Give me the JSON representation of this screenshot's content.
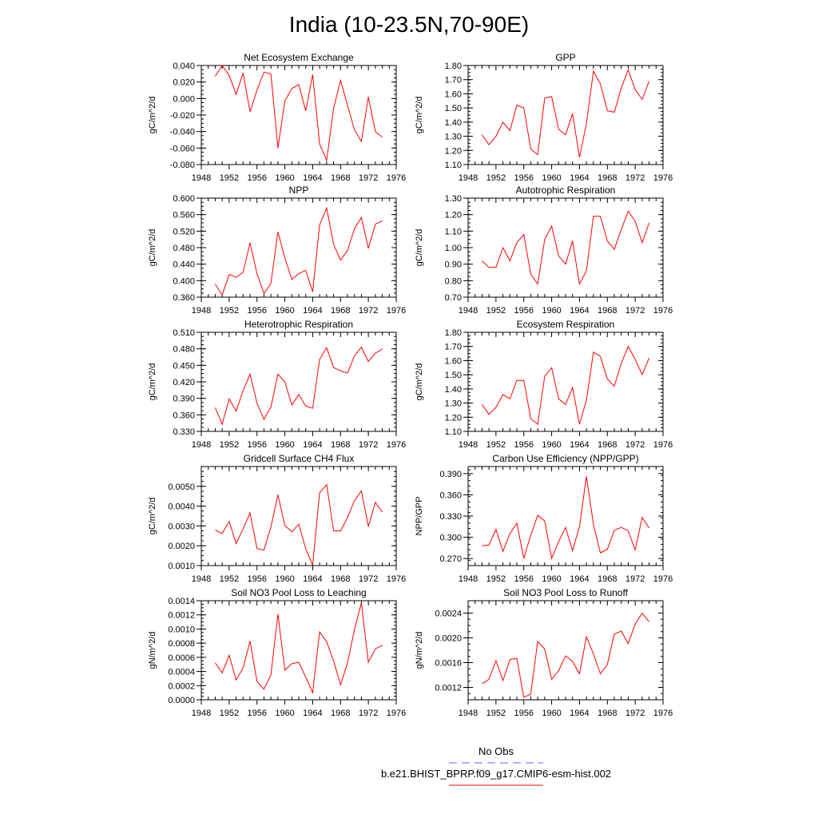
{
  "title": "India (10-23.5N,70-90E)",
  "colors": {
    "model_line": "#ff0000",
    "obs_line": "#6666ff",
    "axis": "#000000"
  },
  "legend": {
    "obs_label": "No Obs",
    "model_label": "b.e21.BHIST_BPRP.f09_g17.CMIP6-esm-hist.002"
  },
  "x": [
    1950,
    1951,
    1952,
    1953,
    1954,
    1955,
    1956,
    1957,
    1958,
    1959,
    1960,
    1961,
    1962,
    1963,
    1964,
    1965,
    1966,
    1967,
    1968,
    1969,
    1970,
    1971,
    1972,
    1973,
    1974
  ],
  "chart_data": [
    {
      "type": "line",
      "title": "Net Ecosystem Exchange",
      "ylabel": "gC/m^2/d",
      "xlim": [
        1948,
        1976
      ],
      "ylim": [
        -0.08,
        0.04
      ],
      "yticks": [
        "0.040",
        "0.020",
        "0.000",
        "-0.020",
        "-0.040",
        "-0.060",
        "-0.080"
      ],
      "ytick_values": [
        0.04,
        0.02,
        0.0,
        -0.02,
        -0.04,
        -0.06,
        -0.08
      ],
      "xticks": [
        "1948",
        "1952",
        "1956",
        "1960",
        "1964",
        "1968",
        "1972",
        "1976"
      ],
      "series": [
        {
          "values": [
            0.027,
            0.04,
            0.028,
            0.005,
            0.031,
            -0.016,
            0.01,
            0.032,
            0.03,
            -0.06,
            -0.003,
            0.012,
            0.017,
            -0.015,
            0.029,
            -0.055,
            -0.075,
            -0.012,
            0.022,
            -0.008,
            -0.038,
            -0.052,
            0.002,
            -0.04,
            -0.047
          ]
        }
      ]
    },
    {
      "type": "line",
      "title": "GPP",
      "ylabel": "gC/m^2/d",
      "xlim": [
        1948,
        1976
      ],
      "ylim": [
        1.1,
        1.8
      ],
      "yticks": [
        "1.80",
        "1.70",
        "1.60",
        "1.50",
        "1.40",
        "1.30",
        "1.20",
        "1.10"
      ],
      "ytick_values": [
        1.8,
        1.7,
        1.6,
        1.5,
        1.4,
        1.3,
        1.2,
        1.1
      ],
      "xticks": [
        "1948",
        "1952",
        "1956",
        "1960",
        "1964",
        "1968",
        "1972",
        "1976"
      ],
      "series": [
        {
          "values": [
            1.31,
            1.24,
            1.3,
            1.4,
            1.34,
            1.52,
            1.5,
            1.21,
            1.17,
            1.57,
            1.58,
            1.35,
            1.31,
            1.46,
            1.15,
            1.39,
            1.76,
            1.67,
            1.48,
            1.47,
            1.64,
            1.77,
            1.63,
            1.56,
            1.69
          ]
        }
      ]
    },
    {
      "type": "line",
      "title": "NPP",
      "ylabel": "gC/m^2/d",
      "xlim": [
        1948,
        1976
      ],
      "ylim": [
        0.36,
        0.6
      ],
      "yticks": [
        "0.600",
        "0.560",
        "0.520",
        "0.480",
        "0.440",
        "0.400",
        "0.360"
      ],
      "ytick_values": [
        0.6,
        0.56,
        0.52,
        0.48,
        0.44,
        0.4,
        0.36
      ],
      "xticks": [
        "1948",
        "1952",
        "1956",
        "1960",
        "1964",
        "1968",
        "1972",
        "1976"
      ],
      "series": [
        {
          "values": [
            0.392,
            0.365,
            0.415,
            0.408,
            0.42,
            0.492,
            0.417,
            0.369,
            0.393,
            0.518,
            0.455,
            0.403,
            0.417,
            0.425,
            0.373,
            0.535,
            0.576,
            0.488,
            0.45,
            0.473,
            0.526,
            0.553,
            0.478,
            0.537,
            0.545
          ]
        }
      ]
    },
    {
      "type": "line",
      "title": "Autotrophic Respiration",
      "ylabel": "gC/m^2/d",
      "xlim": [
        1948,
        1976
      ],
      "ylim": [
        0.7,
        1.3
      ],
      "yticks": [
        "1.30",
        "1.20",
        "1.10",
        "1.00",
        "0.90",
        "0.80",
        "0.70"
      ],
      "ytick_values": [
        1.3,
        1.2,
        1.1,
        1.0,
        0.9,
        0.8,
        0.7
      ],
      "xticks": [
        "1948",
        "1952",
        "1956",
        "1960",
        "1964",
        "1968",
        "1972",
        "1976"
      ],
      "series": [
        {
          "values": [
            0.92,
            0.88,
            0.88,
            1.0,
            0.92,
            1.03,
            1.08,
            0.84,
            0.78,
            1.05,
            1.13,
            0.95,
            0.9,
            1.04,
            0.78,
            0.86,
            1.19,
            1.19,
            1.04,
            0.99,
            1.11,
            1.22,
            1.16,
            1.03,
            1.15
          ]
        }
      ]
    },
    {
      "type": "line",
      "title": "Heterotrophic Respiration",
      "ylabel": "gC/m^2/d",
      "xlim": [
        1948,
        1976
      ],
      "ylim": [
        0.33,
        0.51
      ],
      "yticks": [
        "0.510",
        "0.480",
        "0.450",
        "0.420",
        "0.390",
        "0.360",
        "0.330"
      ],
      "ytick_values": [
        0.51,
        0.48,
        0.45,
        0.42,
        0.39,
        0.36,
        0.33
      ],
      "xticks": [
        "1948",
        "1952",
        "1956",
        "1960",
        "1964",
        "1968",
        "1972",
        "1976"
      ],
      "series": [
        {
          "values": [
            0.373,
            0.343,
            0.389,
            0.367,
            0.404,
            0.434,
            0.381,
            0.352,
            0.374,
            0.434,
            0.42,
            0.378,
            0.397,
            0.376,
            0.372,
            0.461,
            0.482,
            0.446,
            0.44,
            0.436,
            0.467,
            0.483,
            0.457,
            0.472,
            0.48
          ]
        }
      ]
    },
    {
      "type": "line",
      "title": "Ecosystem Respiration",
      "ylabel": "gC/m^2/d",
      "xlim": [
        1948,
        1976
      ],
      "ylim": [
        1.1,
        1.8
      ],
      "yticks": [
        "1.80",
        "1.70",
        "1.60",
        "1.50",
        "1.40",
        "1.30",
        "1.20",
        "1.10"
      ],
      "ytick_values": [
        1.8,
        1.7,
        1.6,
        1.5,
        1.4,
        1.3,
        1.2,
        1.1
      ],
      "xticks": [
        "1948",
        "1952",
        "1956",
        "1960",
        "1964",
        "1968",
        "1972",
        "1976"
      ],
      "series": [
        {
          "values": [
            1.29,
            1.22,
            1.27,
            1.36,
            1.33,
            1.46,
            1.46,
            1.19,
            1.15,
            1.49,
            1.55,
            1.33,
            1.29,
            1.41,
            1.15,
            1.32,
            1.66,
            1.63,
            1.47,
            1.42,
            1.58,
            1.7,
            1.61,
            1.5,
            1.62
          ]
        }
      ]
    },
    {
      "type": "line",
      "title": "Gridcell Surface CH4 Flux",
      "ylabel": "gC/m^2/d",
      "xlim": [
        1948,
        1976
      ],
      "ylim": [
        0.001,
        0.006
      ],
      "yticks": [
        "0.0050",
        "0.0040",
        "0.0030",
        "0.0020",
        "0.0010"
      ],
      "ytick_values": [
        0.005,
        0.004,
        0.003,
        0.002,
        0.001
      ],
      "xticks": [
        "1948",
        "1952",
        "1956",
        "1960",
        "1964",
        "1968",
        "1972",
        "1976"
      ],
      "series": [
        {
          "values": [
            0.0028,
            0.00262,
            0.00323,
            0.00211,
            0.00285,
            0.00366,
            0.00186,
            0.00178,
            0.00294,
            0.00458,
            0.00302,
            0.0027,
            0.00309,
            0.00185,
            0.00102,
            0.00468,
            0.00508,
            0.00276,
            0.00275,
            0.00342,
            0.00428,
            0.00477,
            0.00297,
            0.00419,
            0.00371
          ]
        }
      ]
    },
    {
      "type": "line",
      "title": "Carbon Use Efficiency (NPP/GPP)",
      "ylabel": "NPP/GPP",
      "xlim": [
        1948,
        1976
      ],
      "ylim": [
        0.26,
        0.4
      ],
      "yticks": [
        "0.390",
        "0.360",
        "0.330",
        "0.300",
        "0.270"
      ],
      "ytick_values": [
        0.39,
        0.36,
        0.33,
        0.3,
        0.27
      ],
      "xticks": [
        "1948",
        "1952",
        "1956",
        "1960",
        "1964",
        "1968",
        "1972",
        "1976"
      ],
      "series": [
        {
          "values": [
            0.288,
            0.289,
            0.311,
            0.28,
            0.305,
            0.32,
            0.27,
            0.303,
            0.331,
            0.323,
            0.27,
            0.294,
            0.314,
            0.281,
            0.315,
            0.386,
            0.318,
            0.278,
            0.283,
            0.31,
            0.314,
            0.309,
            0.282,
            0.328,
            0.313
          ]
        }
      ]
    },
    {
      "type": "line",
      "title": "Soil NO3 Pool Loss to Leaching",
      "ylabel": "gN/m^2/d",
      "xlim": [
        1948,
        1976
      ],
      "ylim": [
        0.0,
        0.0014
      ],
      "yticks": [
        "0.0014",
        "0.0012",
        "0.0010",
        "0.0008",
        "0.0006",
        "0.0004",
        "0.0002",
        "0.0000"
      ],
      "ytick_values": [
        0.0014,
        0.0012,
        0.001,
        0.0008,
        0.0006,
        0.0004,
        0.0002,
        0.0
      ],
      "xticks": [
        "1948",
        "1952",
        "1956",
        "1960",
        "1964",
        "1968",
        "1972",
        "1976"
      ],
      "series": [
        {
          "values": [
            0.00052,
            0.00038,
            0.00063,
            0.00028,
            0.00045,
            0.00083,
            0.00026,
            0.00015,
            0.00035,
            0.00121,
            0.00042,
            0.00051,
            0.00053,
            0.00032,
            0.0001,
            0.00096,
            0.00082,
            0.00055,
            0.00021,
            0.00052,
            0.00099,
            0.00137,
            0.00053,
            0.00072,
            0.00077
          ]
        }
      ]
    },
    {
      "type": "line",
      "title": "Soil NO3 Pool Loss to Runoff",
      "ylabel": "gN/m^2/d",
      "xlim": [
        1948,
        1976
      ],
      "ylim": [
        0.001,
        0.0026
      ],
      "yticks": [
        "0.0024",
        "0.0020",
        "0.0016",
        "0.0012"
      ],
      "ytick_values": [
        0.0024,
        0.002,
        0.0016,
        0.0012
      ],
      "xticks": [
        "1948",
        "1952",
        "1956",
        "1960",
        "1964",
        "1968",
        "1972",
        "1976"
      ],
      "series": [
        {
          "values": [
            0.00126,
            0.00133,
            0.00163,
            0.00131,
            0.00165,
            0.00167,
            0.00104,
            0.00109,
            0.00194,
            0.00182,
            0.00133,
            0.00147,
            0.00171,
            0.00162,
            0.00142,
            0.00202,
            0.00174,
            0.00142,
            0.00157,
            0.00206,
            0.00211,
            0.00191,
            0.00222,
            0.0024,
            0.00226
          ]
        }
      ]
    }
  ]
}
